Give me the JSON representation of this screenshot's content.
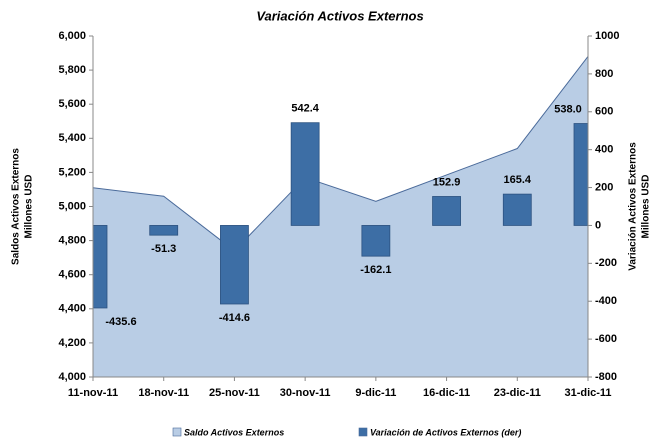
{
  "chart_data": {
    "type": "combo",
    "title": "Variación Activos Externos",
    "y_label": [
      "Saldos Activos Externos",
      "Millones USD"
    ],
    "y2_label": [
      "Variación Activos Externos",
      "Millones USD"
    ],
    "categories": [
      "11-nov-11",
      "18-nov-11",
      "25-nov-11",
      "30-nov-11",
      "9-dic-11",
      "16-dic-11",
      "23-dic-11",
      "31-dic-11"
    ],
    "series": [
      {
        "name": "Saldo Activos Externos",
        "type": "area",
        "color": "#b9cde5",
        "line_color": "#4a6a9a",
        "values": [
          5110,
          5060,
          4740,
          5170,
          5030,
          5185,
          5340,
          5880
        ]
      },
      {
        "name": "Variación de Activos Externos (der)",
        "type": "bar",
        "axis": "y2",
        "color": "#3d6ea5",
        "values": [
          -435.6,
          -51.3,
          -414.6,
          542.4,
          -162.1,
          152.9,
          165.4,
          538
        ],
        "value_labels": [
          "-435.6",
          "-51.3",
          "-414.6",
          "542.4",
          "-162.1",
          "152.9",
          "165.4",
          "538.0"
        ]
      }
    ],
    "ylim": [
      4000,
      6000
    ],
    "yticks": [
      {
        "value": 4000,
        "label": "4,000"
      },
      {
        "value": 4200,
        "label": "4,200"
      },
      {
        "value": 4400,
        "label": "4,400"
      },
      {
        "value": 4600,
        "label": "4,600"
      },
      {
        "value": 4800,
        "label": "4,800"
      },
      {
        "value": 5000,
        "label": "5,000"
      },
      {
        "value": 5200,
        "label": "5,200"
      },
      {
        "value": 5400,
        "label": "5,400"
      },
      {
        "value": 5600,
        "label": "5,600"
      },
      {
        "value": 5800,
        "label": "5,800"
      },
      {
        "value": 6000,
        "label": "6,000"
      }
    ],
    "y2lim": [
      -800,
      1000
    ],
    "y2ticks": [
      -800,
      -600,
      -400,
      -200,
      0,
      200,
      400,
      600,
      800,
      1000
    ],
    "grid": false,
    "legend": "bottom"
  }
}
